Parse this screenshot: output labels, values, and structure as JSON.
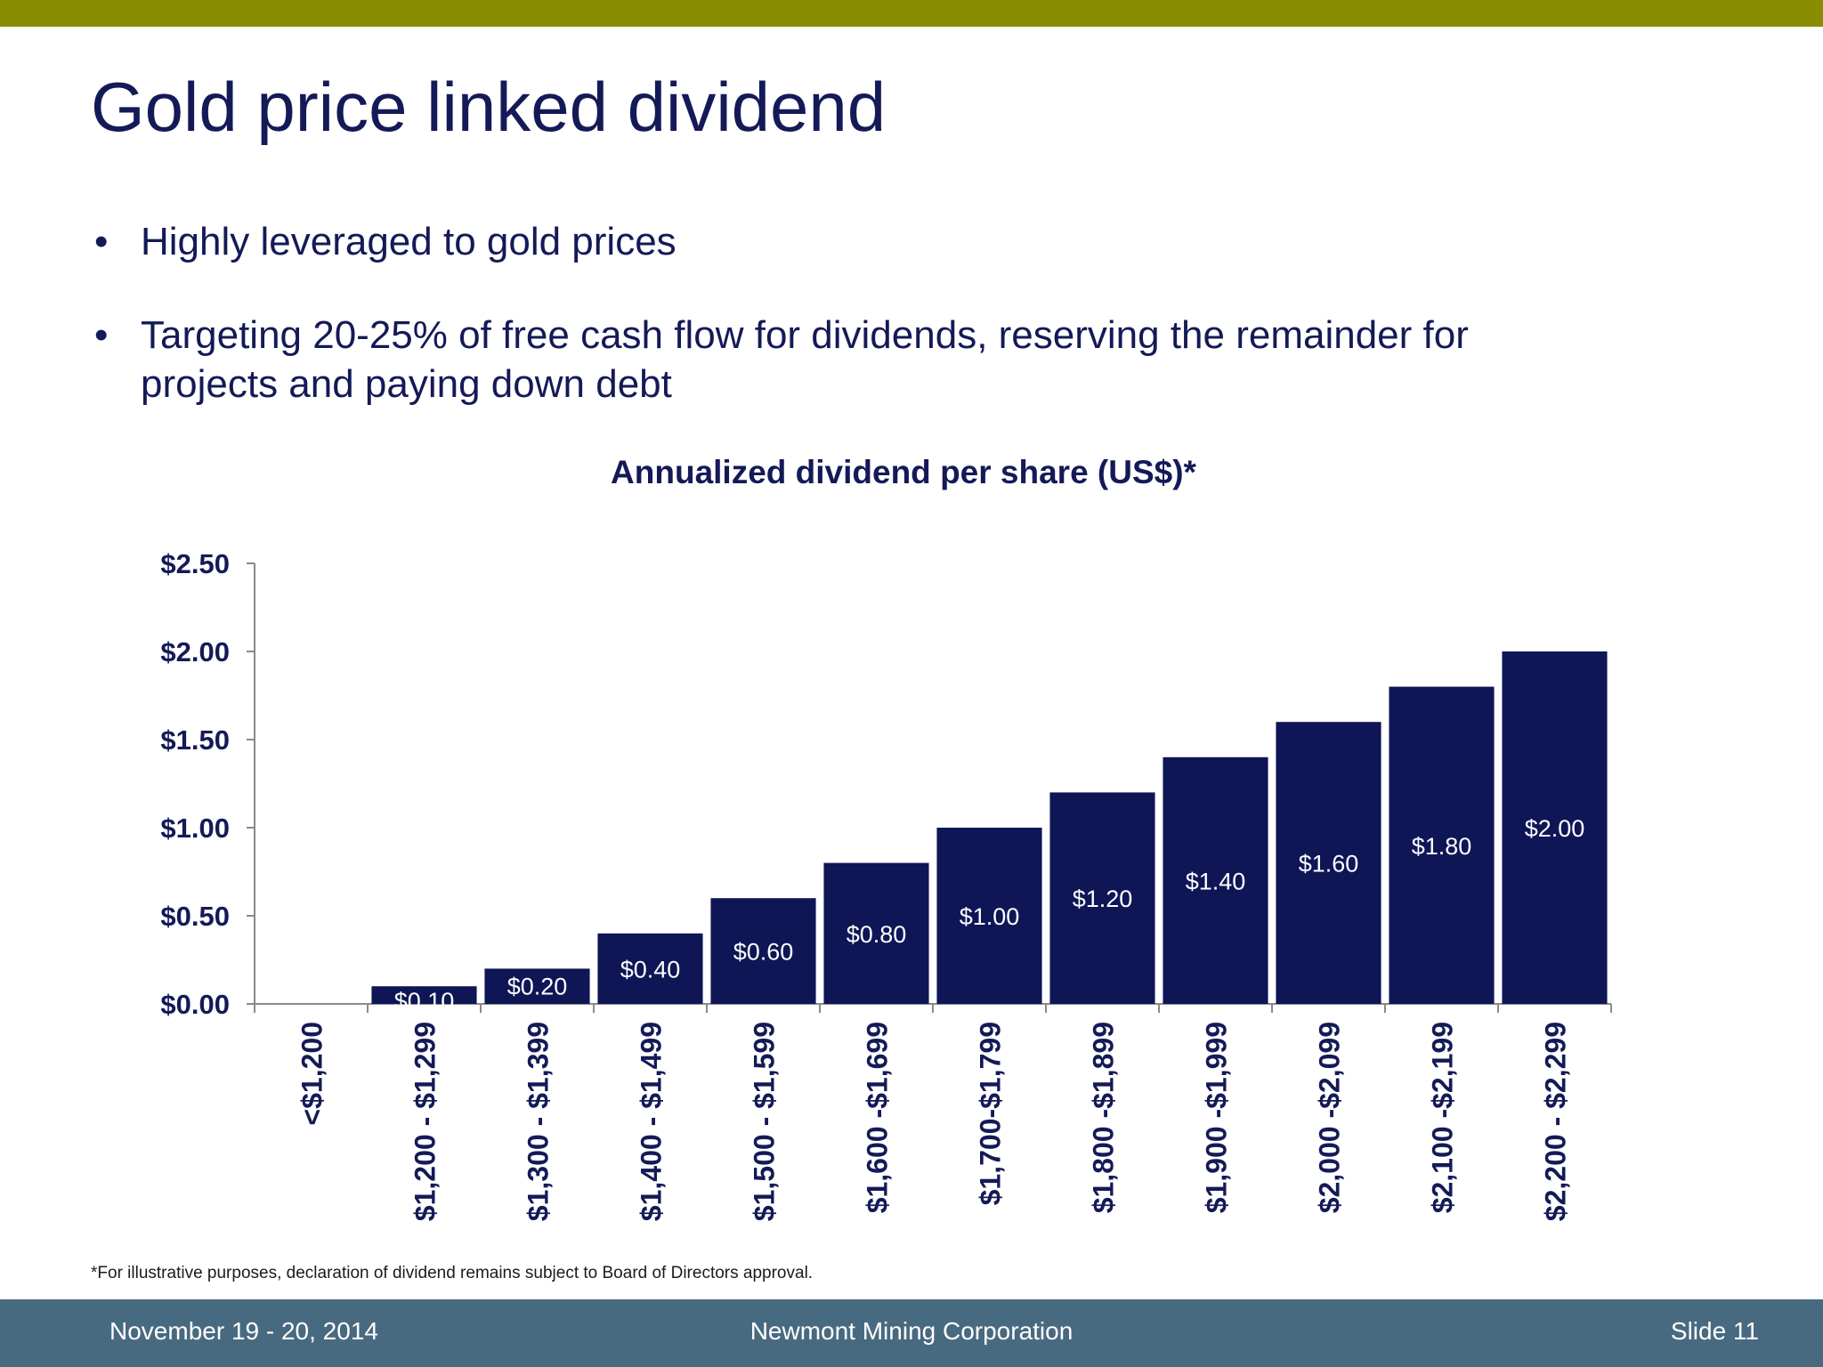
{
  "slide": {
    "title": "Gold price linked dividend",
    "bullets": [
      "Highly leveraged to gold prices",
      "Targeting 20-25% of free cash flow for dividends, reserving the remainder for projects and paying down debt"
    ],
    "footnote": "*For illustrative purposes, declaration of dividend remains subject to Board of Directors approval."
  },
  "footer": {
    "date": "November 19 - 20, 2014",
    "company": "Newmont Mining Corporation",
    "slide_number": "Slide 11"
  },
  "colors": {
    "top_bar": "#878c00",
    "footer_bg": "#486a80",
    "navy": "#141a57",
    "bar_fill": "#0e1656"
  },
  "chart_data": {
    "type": "bar",
    "title": "Annualized dividend per share (US$)*",
    "xlabel": "",
    "ylabel": "",
    "categories": [
      "<$1,200",
      "$1,200 - $1,299",
      "$1,300 - $1,399",
      "$1,400 - $1,499",
      "$1,500 - $1,599",
      "$1,600 -$1,699",
      "$1,700-$1,799",
      "$1,800 -$1,899",
      "$1,900 -$1,999",
      "$2,000 -$2,099",
      "$2,100 -$2,199",
      "$2,200 - $2,299"
    ],
    "values": [
      0,
      0.1,
      0.2,
      0.4,
      0.6,
      0.8,
      1.0,
      1.2,
      1.4,
      1.6,
      1.8,
      2.0
    ],
    "value_labels": [
      "",
      "$0.10",
      "$0.20",
      "$0.40",
      "$0.60",
      "$0.80",
      "$1.00",
      "$1.20",
      "$1.40",
      "$1.60",
      "$1.80",
      "$2.00"
    ],
    "y_ticks": [
      0,
      0.5,
      1.0,
      1.5,
      2.0,
      2.5
    ],
    "y_tick_labels": [
      "$0.00",
      "$0.50",
      "$1.00",
      "$1.50",
      "$2.00",
      "$2.50"
    ],
    "ylim": [
      0,
      2.5
    ],
    "grid": false,
    "legend": "none"
  }
}
